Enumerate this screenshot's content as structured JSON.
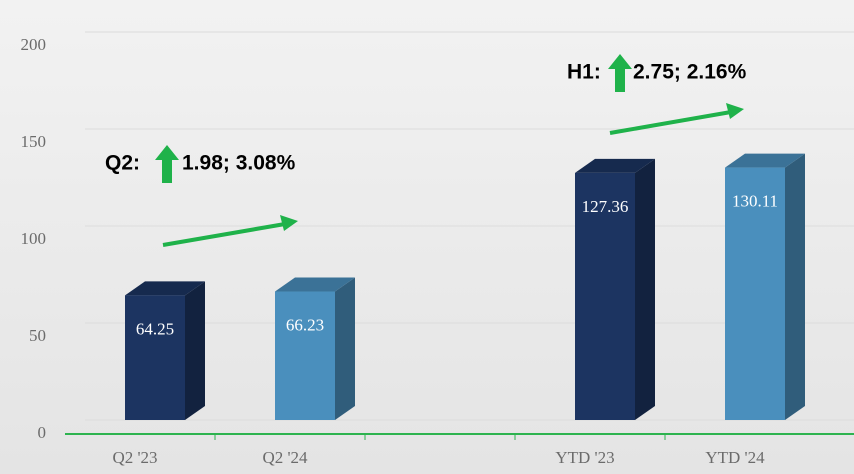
{
  "chart_data": {
    "type": "bar3d",
    "categories": [
      "Q2 '23",
      "Q2 '24",
      null,
      "YTD '23",
      "YTD '24"
    ],
    "values": [
      64.25,
      66.23,
      null,
      127.36,
      130.11
    ],
    "value_labels": [
      "64.25",
      "66.23",
      null,
      "127.36",
      "130.11"
    ],
    "colors": [
      "#1c3461",
      "#4a8fbd",
      null,
      "#1c3461",
      "#4a8fbd"
    ],
    "ylim": [
      0,
      200
    ],
    "yticks": [
      0,
      50,
      100,
      150,
      200
    ],
    "grid": true,
    "annotations": [
      {
        "prefix": "Q2:",
        "text": "1.98; 3.08%"
      },
      {
        "prefix": "H1:",
        "text": "2.75; 2.16%"
      }
    ]
  }
}
